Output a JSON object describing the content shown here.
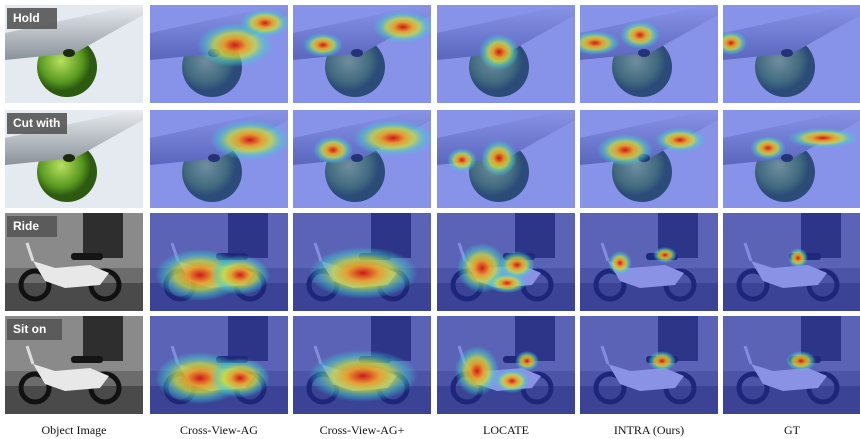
{
  "row_labels": [
    "Hold",
    "Cut with",
    "Ride",
    "Sit on"
  ],
  "column_labels": [
    "Object Image",
    "Cross-View-AG",
    "Cross-View-AG+",
    "LOCATE",
    "INTRA (Ours)",
    "GT"
  ]
}
